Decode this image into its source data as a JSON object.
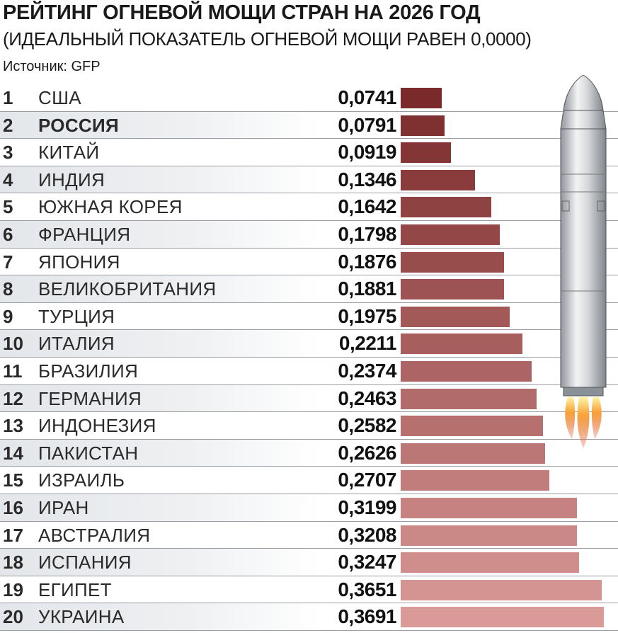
{
  "header": {
    "title": "РЕЙТИНГ ОГНЕВОЙ МОЩИ СТРАН НА 2026 ГОД",
    "subtitle": "(ИДЕАЛЬНЫЙ ПОКАЗАТЕЛЬ ОГНЕВОЙ МОЩИ РАВЕН 0,0000)",
    "source": "Источник: GFP"
  },
  "colors": {
    "bar_top": "#7a2a2a",
    "bar_bottom": "#d99a98",
    "row_shade": "#e6e9ec"
  },
  "chart_data": {
    "type": "bar",
    "orientation": "horizontal",
    "title": "РЕЙТИНГ ОГНЕВОЙ МОЩИ СТРАН НА 2026 ГОД",
    "subtitle": "(ИДЕАЛЬНЫЙ ПОКАЗАТЕЛЬ ОГНЕВОЙ МОЩИ РАВЕН 0,0000)",
    "xlim": [
      0,
      0.3691
    ],
    "grid": false,
    "ranks": [
      "1",
      "2",
      "3",
      "4",
      "5",
      "6",
      "7",
      "8",
      "9",
      "10",
      "11",
      "12",
      "13",
      "14",
      "15",
      "16",
      "17",
      "18",
      "19",
      "20"
    ],
    "categories": [
      "США",
      "РОССИЯ",
      "КИТАЙ",
      "ИНДИЯ",
      "ЮЖНАЯ КОРЕЯ",
      "ФРАНЦИЯ",
      "ЯПОНИЯ",
      "ВЕЛИКОБРИТАНИЯ",
      "ТУРЦИЯ",
      "ИТАЛИЯ",
      "БРАЗИЛИЯ",
      "ГЕРМАНИЯ",
      "ИНДОНЕЗИЯ",
      "ПАКИСТАН",
      "ИЗРАИЛЬ",
      "ИРАН",
      "АВСТРАЛИЯ",
      "ИСПАНИЯ",
      "ЕГИПЕТ",
      "УКРАИНА"
    ],
    "values": [
      0.0741,
      0.0791,
      0.0919,
      0.1346,
      0.1642,
      0.1798,
      0.1876,
      0.1881,
      0.1975,
      0.2211,
      0.2374,
      0.2463,
      0.2582,
      0.2626,
      0.2707,
      0.3199,
      0.3208,
      0.3247,
      0.3651,
      0.3691
    ],
    "value_labels": [
      "0,0741",
      "0,0791",
      "0,0919",
      "0,1346",
      "0,1642",
      "0,1798",
      "0,1876",
      "0,1881",
      "0,1975",
      "0,2211",
      "0,2374",
      "0,2463",
      "0,2582",
      "0,2626",
      "0,2707",
      "0,3199",
      "0,3208",
      "0,3247",
      "0,3651",
      "0,3691"
    ],
    "highlighted": "РОССИЯ"
  }
}
